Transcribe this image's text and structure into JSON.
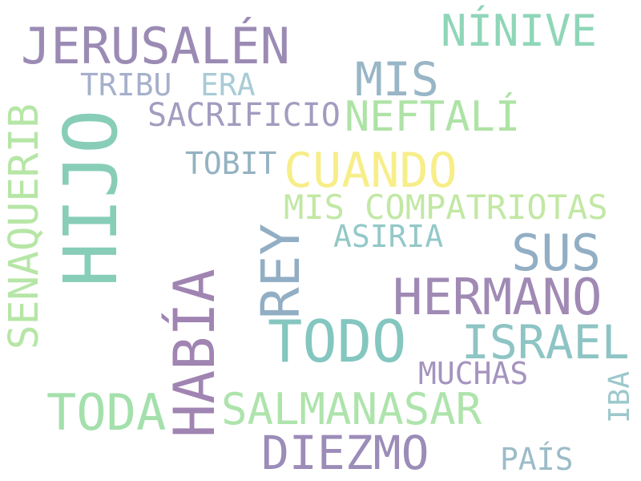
{
  "palette": {
    "purple": "#9b8bb4",
    "green": "#a8e0a8",
    "teal": "#88cdb8",
    "lightblue": "#9ab6c6",
    "yellow": "#f7ee8a",
    "slate": "#95a8ba"
  },
  "words": [
    {
      "key": "hijo",
      "text": "HIJO",
      "orientation": "vertical",
      "color": "#88cdb8"
    },
    {
      "key": "jerusalen",
      "text": "JERUSALÉN",
      "orientation": "horizontal",
      "color": "#9b8bb4"
    },
    {
      "key": "ninive",
      "text": "NÍNIVE",
      "orientation": "horizontal",
      "color": "#8fd6b8"
    },
    {
      "key": "senaquerib",
      "text": "SENAQUERIB",
      "orientation": "vertical",
      "color": "#b6e6a6"
    },
    {
      "key": "mis",
      "text": "MIS",
      "orientation": "horizontal",
      "color": "#98b6c6"
    },
    {
      "key": "tribu",
      "text": "TRIBU",
      "orientation": "horizontal",
      "color": "#a6b0cc"
    },
    {
      "key": "era",
      "text": "ERA",
      "orientation": "horizontal",
      "color": "#a9cbd6"
    },
    {
      "key": "neftali",
      "text": "NEFTALÍ",
      "orientation": "horizontal",
      "color": "#aee3a6"
    },
    {
      "key": "sacrificio",
      "text": "SACRIFICIO",
      "orientation": "horizontal",
      "color": "#a39cbf"
    },
    {
      "key": "tobit",
      "text": "TOBIT",
      "orientation": "horizontal",
      "color": "#94b2c2"
    },
    {
      "key": "cuando",
      "text": "CUANDO",
      "orientation": "horizontal",
      "color": "#f7ee8a"
    },
    {
      "key": "mis_compatriotas",
      "text": "MIS COMPATRIOTAS",
      "orientation": "horizontal",
      "color": "#c2e8a4"
    },
    {
      "key": "rey",
      "text": "REY",
      "orientation": "vertical",
      "color": "#92aec4"
    },
    {
      "key": "asiria",
      "text": "ASIRIA",
      "orientation": "horizontal",
      "color": "#94c8c8"
    },
    {
      "key": "sus",
      "text": "SUS",
      "orientation": "horizontal",
      "color": "#92aec4"
    },
    {
      "key": "hermano",
      "text": "HERMANO",
      "orientation": "horizontal",
      "color": "#a08ab4"
    },
    {
      "key": "habia",
      "text": "HABÍA",
      "orientation": "vertical",
      "color": "#a084b2"
    },
    {
      "key": "todo",
      "text": "TODO",
      "orientation": "horizontal",
      "color": "#84c6c0"
    },
    {
      "key": "israel",
      "text": "ISRAEL",
      "orientation": "horizontal",
      "color": "#8ec4c4"
    },
    {
      "key": "muchas",
      "text": "MUCHAS",
      "orientation": "horizontal",
      "color": "#a494be"
    },
    {
      "key": "toda",
      "text": "TODA",
      "orientation": "horizontal",
      "color": "#a4e0ac"
    },
    {
      "key": "salmanasar",
      "text": "SALMANASAR",
      "orientation": "horizontal",
      "color": "#aee4ac"
    },
    {
      "key": "iba",
      "text": "IBA",
      "orientation": "vertical",
      "color": "#9cc8cc"
    },
    {
      "key": "diezmo",
      "text": "DIEZMO",
      "orientation": "horizontal",
      "color": "#9c8cb8"
    },
    {
      "key": "pais",
      "text": "PAÍS",
      "orientation": "horizontal",
      "color": "#9cbcc8"
    }
  ]
}
